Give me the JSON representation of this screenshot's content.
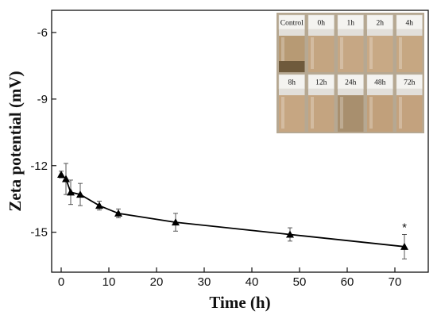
{
  "chart_data": {
    "type": "line",
    "title": "",
    "xlabel": "Time (h)",
    "ylabel": "Zeta potential (mV)",
    "xlim": [
      -2,
      77
    ],
    "ylim": [
      -16.8,
      -5.0
    ],
    "xticks": [
      0,
      10,
      20,
      30,
      40,
      50,
      60,
      70
    ],
    "yticks": [
      -6,
      -9,
      -12,
      -15
    ],
    "grid": false,
    "legend": "none",
    "series": [
      {
        "marker": "triangle",
        "color": "#000000",
        "x": [
          0,
          1,
          2,
          4,
          8,
          12,
          24,
          48,
          72
        ],
        "y": [
          -12.4,
          -12.6,
          -13.2,
          -13.3,
          -13.8,
          -14.15,
          -14.55,
          -15.1,
          -15.65
        ],
        "err": [
          0.15,
          0.7,
          0.55,
          0.5,
          0.2,
          0.2,
          0.4,
          0.3,
          0.55
        ]
      }
    ],
    "annotations": [
      {
        "text": "*",
        "x": 72
      }
    ]
  },
  "inset": {
    "top_row": [
      {
        "label": "Control",
        "liquid": "#b79a74",
        "sediment": "#6f5a3c"
      },
      {
        "label": "0h",
        "liquid": "#c4a581",
        "sediment": ""
      },
      {
        "label": "1h",
        "liquid": "#c6a784",
        "sediment": ""
      },
      {
        "label": "2h",
        "liquid": "#c8a985",
        "sediment": ""
      },
      {
        "label": "4h",
        "liquid": "#c6a782",
        "sediment": ""
      }
    ],
    "bottom_row": [
      {
        "label": "8h",
        "liquid": "#c6a682",
        "sediment": ""
      },
      {
        "label": "12h",
        "liquid": "#c4a480",
        "sediment": ""
      },
      {
        "label": "24h",
        "liquid": "#a88f6e",
        "sediment": ""
      },
      {
        "label": "48h",
        "liquid": "#c1a07b",
        "sediment": ""
      },
      {
        "label": "72h",
        "liquid": "#c3a27e",
        "sediment": ""
      }
    ]
  }
}
